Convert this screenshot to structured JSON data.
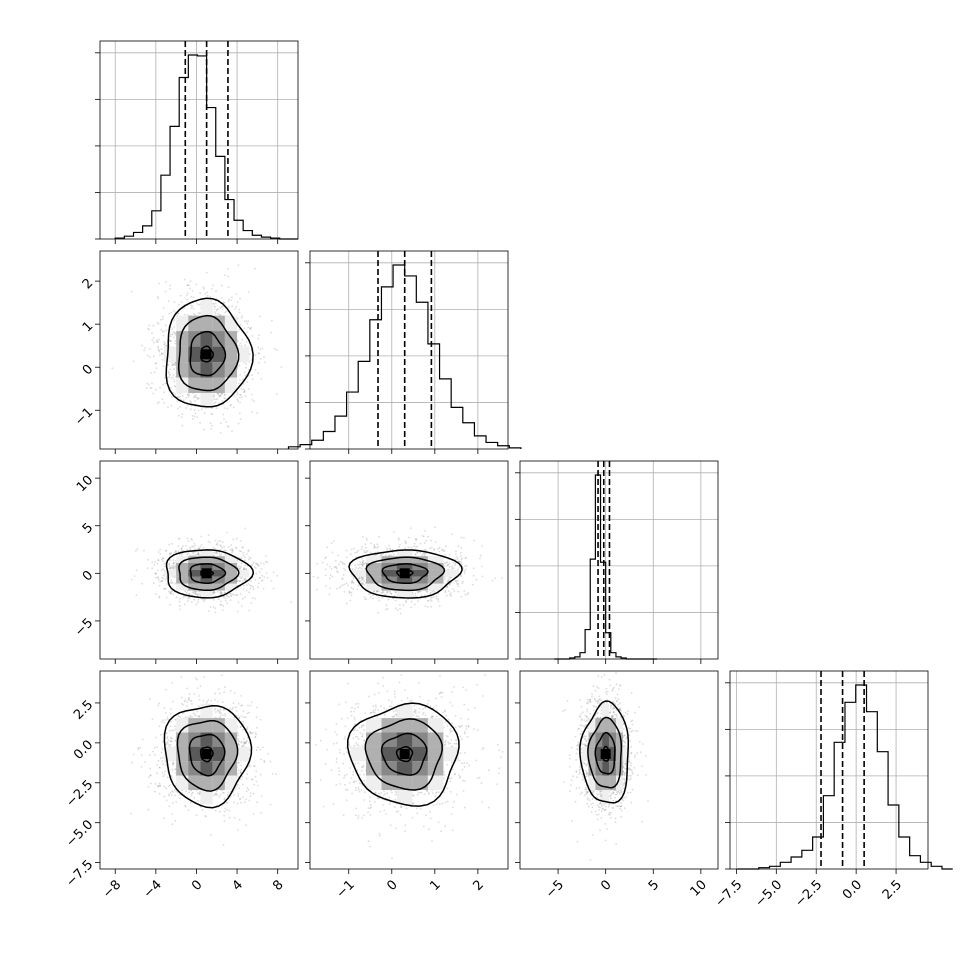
{
  "chart_data": {
    "type": "corner",
    "n_params": 4,
    "params": [
      {
        "range": [
          -9.5,
          10
        ],
        "ticks": [
          -8,
          -4,
          0,
          4,
          8
        ],
        "tick_labels": [
          "−8",
          "−4",
          "0",
          "4",
          "8"
        ],
        "mean": 1,
        "sigma": 2,
        "quantiles": [
          -1.1,
          1.0,
          3.1
        ]
      },
      {
        "range": [
          -1.9,
          2.7
        ],
        "ticks": [
          -1,
          0,
          1,
          2
        ],
        "tick_labels": [
          "−1",
          "0",
          "1",
          "2"
        ],
        "mean": 0.3,
        "sigma": 0.6,
        "quantiles": [
          -0.32,
          0.3,
          0.92
        ]
      },
      {
        "range": [
          -9,
          11.8
        ],
        "ticks": [
          -5,
          0,
          5,
          10
        ],
        "tick_labels": [
          "−5",
          "0",
          "5",
          "10"
        ],
        "mean": 0,
        "sigma": 1.2,
        "quantiles": [
          -0.8,
          -0.2,
          0.4
        ]
      },
      {
        "range": [
          -7.9,
          4.5
        ],
        "ticks": [
          -7.5,
          -5,
          -2.5,
          0,
          2.5
        ],
        "tick_labels": [
          "−7.5",
          "−5.0",
          "−2.5",
          "0.0",
          "2.5"
        ],
        "mean": -0.7,
        "sigma": 1.5,
        "quantiles": [
          -2.2,
          -0.85,
          0.5
        ]
      }
    ],
    "hist_values": [
      [
        1,
        3,
        7,
        14,
        30,
        68,
        120,
        172,
        196,
        195,
        140,
        88,
        42,
        20,
        9,
        4,
        2,
        1,
        0,
        0
      ],
      [
        2,
        4,
        8,
        16,
        30,
        52,
        80,
        118,
        148,
        168,
        158,
        134,
        96,
        64,
        38,
        24,
        12,
        6,
        3,
        1
      ],
      [
        0,
        0,
        0,
        1,
        2,
        6,
        28,
        95,
        175,
        92,
        25,
        6,
        2,
        1,
        0,
        0,
        0,
        0,
        0,
        0
      ],
      [
        0,
        0,
        1,
        2,
        5,
        9,
        14,
        24,
        55,
        95,
        125,
        138,
        118,
        88,
        48,
        24,
        10,
        5,
        2,
        0
      ]
    ],
    "grid": true,
    "histogram_lines": "dashed quantiles",
    "color": "#000000"
  }
}
